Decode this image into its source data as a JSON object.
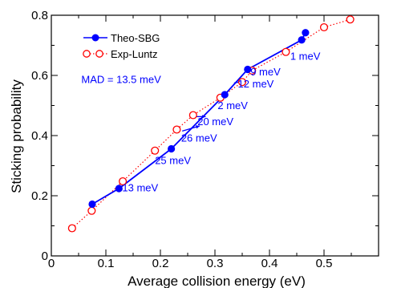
{
  "chart_data": {
    "type": "scatter",
    "xlabel": "Average collision energy (eV)",
    "ylabel": "Sticking probability",
    "xlim": [
      0,
      0.6
    ],
    "ylim": [
      0,
      0.8
    ],
    "xticks": [
      0,
      0.1,
      0.2,
      0.3,
      0.4,
      0.5
    ],
    "yticks": [
      0,
      0.2,
      0.4,
      0.6,
      0.8
    ],
    "xtick_labels": [
      "0",
      "0.1",
      "0.2",
      "0.3",
      "0.4",
      "0.5"
    ],
    "ytick_labels": [
      "0",
      "0.2",
      "0.4",
      "0.6",
      "0.8"
    ],
    "legend_position": "top-left",
    "series": [
      {
        "name": "Theo-SBG",
        "color": "#0000ff",
        "marker": "filled-circle",
        "line": "solid",
        "x": [
          0.075,
          0.124,
          0.22,
          0.318,
          0.36,
          0.459,
          0.466
        ],
        "y": [
          0.172,
          0.224,
          0.356,
          0.536,
          0.62,
          0.718,
          0.742
        ]
      },
      {
        "name": "Exp-Luntz",
        "color": "#ff0000",
        "marker": "open-circle",
        "line": "dotted",
        "x": [
          0.038,
          0.074,
          0.131,
          0.19,
          0.23,
          0.26,
          0.31,
          0.35,
          0.368,
          0.43,
          0.5,
          0.548
        ],
        "y": [
          0.092,
          0.15,
          0.248,
          0.35,
          0.42,
          0.468,
          0.526,
          0.578,
          0.616,
          0.678,
          0.76,
          0.786
        ]
      }
    ],
    "annotations": [
      {
        "text": "MAD = 13.5 meV",
        "x": 0.055,
        "y": 0.575
      },
      {
        "text": "13 meV",
        "x": 0.13,
        "y": 0.215,
        "arrow_from": [
          0.0,
          0.0
        ]
      },
      {
        "text": "25 meV",
        "x": 0.19,
        "y": 0.305
      },
      {
        "text": "26 meV",
        "x": 0.238,
        "y": 0.38,
        "arrow": [
          [
            0.24,
            0.415
          ],
          [
            0.272,
            0.432
          ]
        ]
      },
      {
        "text": "20 meV",
        "x": 0.268,
        "y": 0.435,
        "arrow": [
          [
            0.263,
            0.463
          ],
          [
            0.283,
            0.463
          ]
        ]
      },
      {
        "text": "2 meV",
        "x": 0.305,
        "y": 0.488
      },
      {
        "text": "12 meV",
        "x": 0.342,
        "y": 0.56,
        "arrow": [
          [
            0.335,
            0.575
          ],
          [
            0.352,
            0.58
          ]
        ]
      },
      {
        "text": "9 meV",
        "x": 0.365,
        "y": 0.6,
        "arrow": [
          [
            0.362,
            0.622
          ],
          [
            0.372,
            0.618
          ]
        ]
      },
      {
        "text": "1 meV",
        "x": 0.438,
        "y": 0.652
      }
    ]
  }
}
